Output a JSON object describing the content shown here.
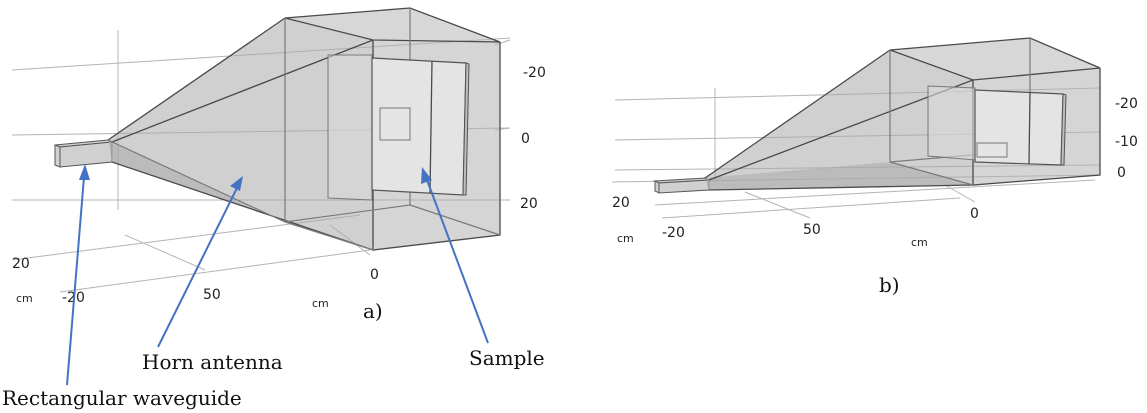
{
  "panel_a": {
    "label": "a)",
    "tick_labels_right": [
      "-20",
      "0",
      "20"
    ],
    "tick_labels_bottom": [
      "20",
      "-20",
      "50",
      "0"
    ],
    "unit_left": "cm",
    "unit_right": "cm",
    "annotations": {
      "waveguide": "Rectangular waveguide",
      "horn": "Horn antenna",
      "sample": "Sample"
    }
  },
  "panel_b": {
    "label": "b)",
    "tick_labels_right": [
      "-20",
      "-10",
      "0"
    ],
    "tick_labels_bottom": [
      "20",
      "-20",
      "50",
      "0"
    ],
    "unit_left": "cm",
    "unit_right": "cm"
  },
  "colors": {
    "arrow": "#4472c4"
  }
}
